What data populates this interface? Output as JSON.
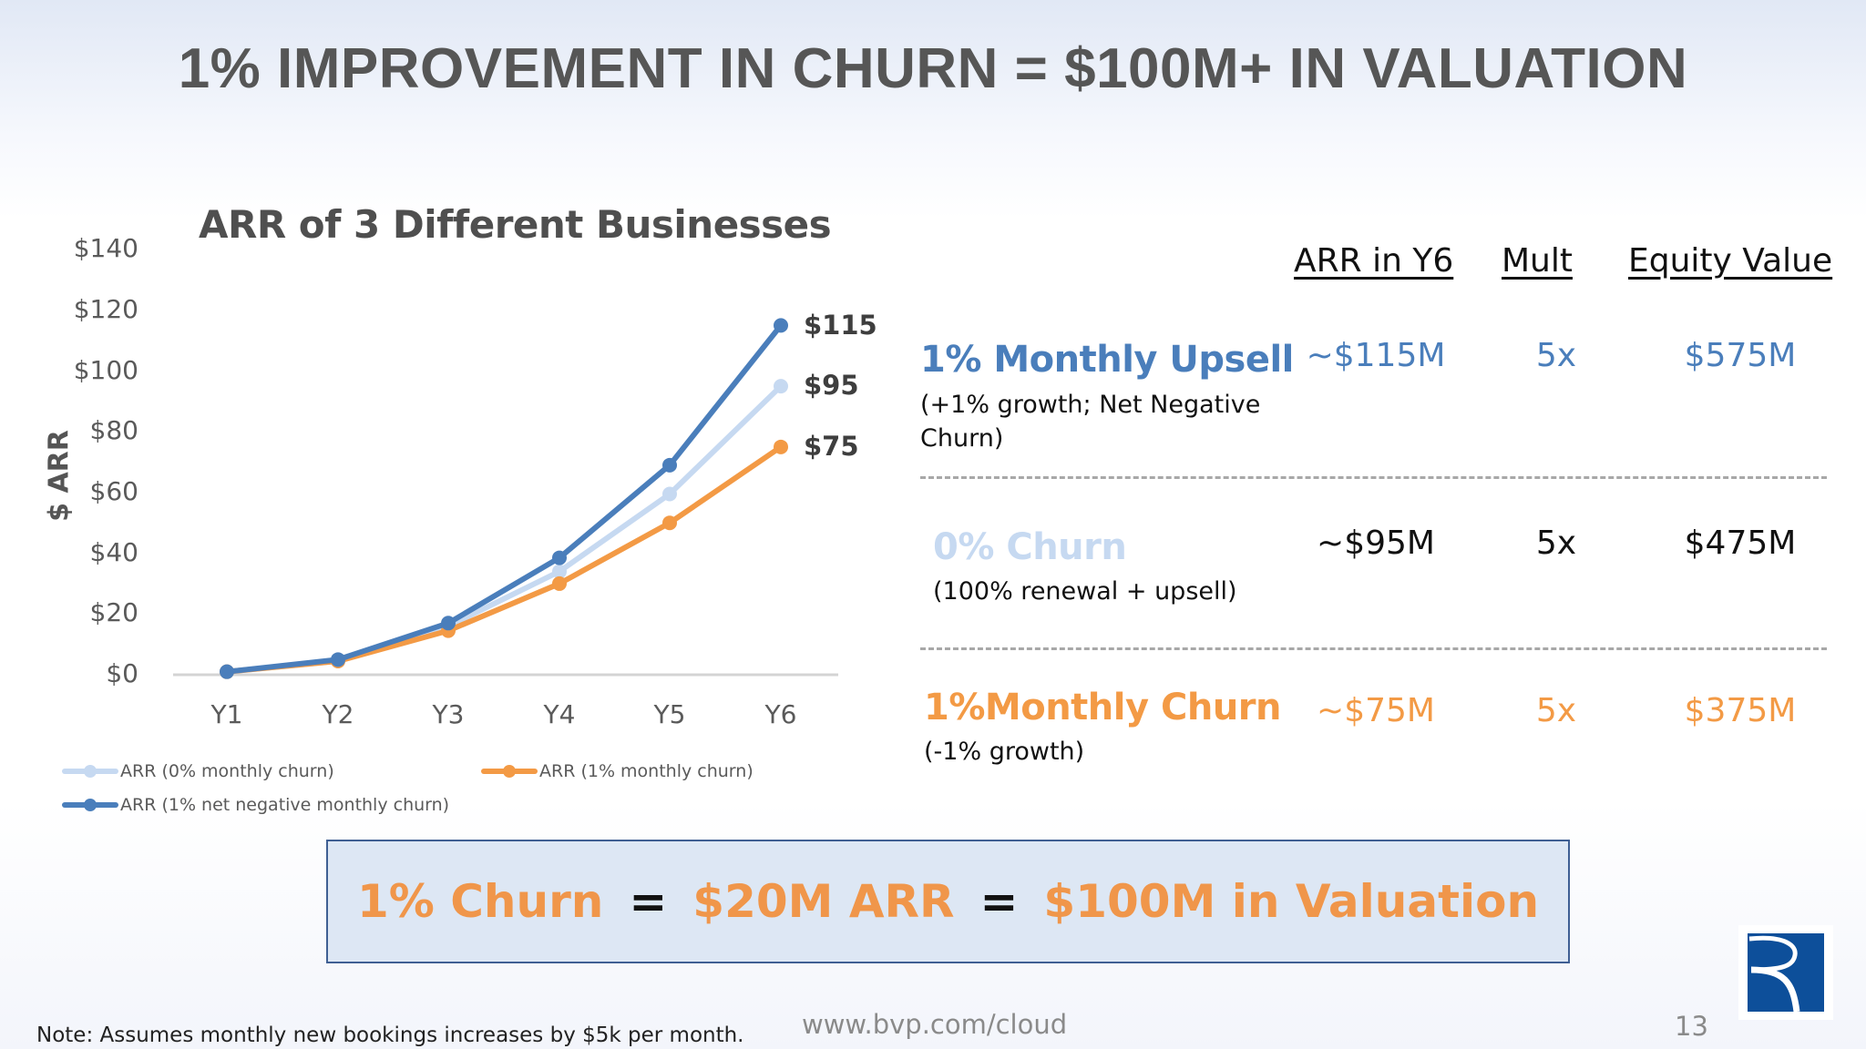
{
  "slide": {
    "title": "1% IMPROVEMENT IN CHURN = $100M+ IN VALUATION",
    "page_number": "13",
    "url": "www.bvp.com/cloud",
    "footnote": "Note: Assumes monthly new bookings increases by $5k per month.",
    "logo_icon": "bvp-r-logo-icon"
  },
  "colors": {
    "blue": "#4a7ebb",
    "light_blue": "#c6d9f1",
    "orange": "#f39a45",
    "dark_text": "#565656"
  },
  "chart_data": {
    "type": "line",
    "title": "ARR of 3 Different Businesses",
    "xlabel": "",
    "ylabel": "$ ARR",
    "categories": [
      "Y1",
      "Y2",
      "Y3",
      "Y4",
      "Y5",
      "Y6"
    ],
    "y_ticks": [
      "$0",
      "$20",
      "$40",
      "$60",
      "$80",
      "$100",
      "$120",
      "$140"
    ],
    "ylim": [
      0,
      140
    ],
    "grid": false,
    "legend_position": "bottom",
    "series": [
      {
        "name": "ARR (0% monthly churn)",
        "color": "#c6d9f1",
        "values": [
          1,
          4.5,
          16,
          34,
          59.5,
          95
        ],
        "end_label": "$95"
      },
      {
        "name": "ARR (1% monthly churn)",
        "color": "#f39a45",
        "values": [
          1,
          4.5,
          14.5,
          30,
          50,
          75
        ],
        "end_label": "$75"
      },
      {
        "name": "ARR (1% net negative monthly churn)",
        "color": "#4a7ebb",
        "values": [
          1,
          5,
          17,
          38.5,
          69,
          115
        ],
        "end_label": "$115"
      }
    ]
  },
  "table": {
    "headers": {
      "arr": "ARR in Y6",
      "mult": "Mult",
      "equity": "Equity Value"
    },
    "rows": [
      {
        "title": "1% Monthly Upsell",
        "sub1": "(+1% growth;  Net Negative",
        "sub2": "Churn)",
        "arr": "~$115M",
        "mult": "5x",
        "equity": "$575M",
        "color": "#4a7ebb"
      },
      {
        "title": "0% Churn",
        "sub1": "(100% renewal + upsell)",
        "sub2": "",
        "arr": "~$95M",
        "mult": "5x",
        "equity": "$475M",
        "color": "#c6d9f1"
      },
      {
        "title": "1%Monthly Churn",
        "sub1": "(-1% growth)",
        "sub2": "",
        "arr": "~$75M",
        "mult": "5x",
        "equity": "$375M",
        "color": "#f39a45"
      }
    ]
  },
  "callout": {
    "part1": "1% Churn",
    "eq1": "=",
    "part2": "$20M ARR",
    "eq2": "=",
    "part3": "$100M in Valuation"
  }
}
